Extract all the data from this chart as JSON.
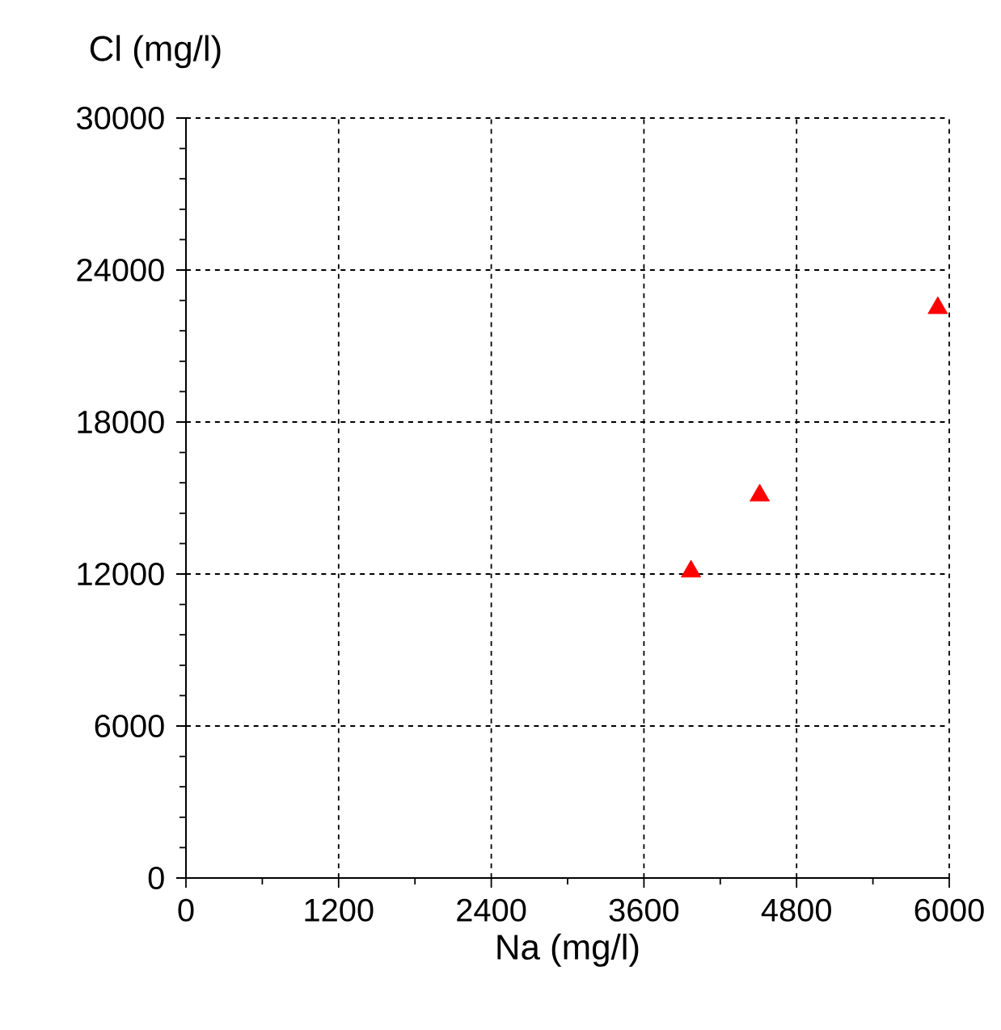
{
  "chart_data": {
    "type": "scatter",
    "xlabel": "Na (mg/l)",
    "ylabel": "Cl (mg/l)",
    "x": [
      3970,
      4510,
      5910
    ],
    "series": [
      {
        "color": "#ff0000",
        "values": [
          12100,
          15100,
          22500
        ]
      }
    ],
    "xlim": [
      0,
      6000
    ],
    "xticks": [
      0,
      1200,
      2400,
      3600,
      4800,
      6000
    ],
    "ylim": [
      0,
      30000
    ],
    "yticks": [
      0,
      6000,
      12000,
      18000,
      24000,
      30000
    ],
    "grid": true,
    "marker": "triangle"
  }
}
